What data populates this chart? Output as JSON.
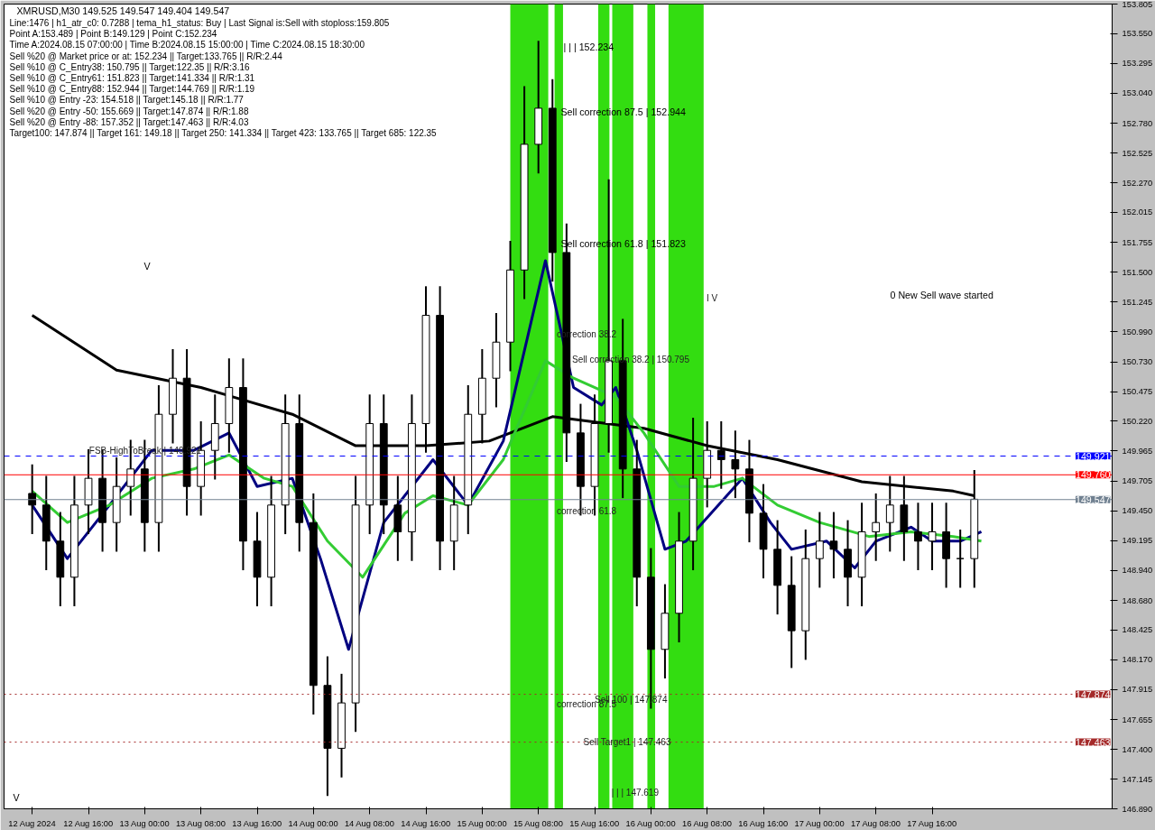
{
  "chart_data": {
    "type": "candlestick",
    "title": "XMRUSD,M30  149.525 149.547 149.404 149.547",
    "x": [
      "2024-08-12T08:00",
      "2024-08-12T10:00",
      "2024-08-12T12:00",
      "2024-08-12T14:00",
      "2024-08-12T16:00",
      "2024-08-12T18:00",
      "2024-08-12T20:00",
      "2024-08-12T22:00",
      "2024-08-13T00:00",
      "2024-08-13T02:00",
      "2024-08-13T04:00",
      "2024-08-13T06:00",
      "2024-08-13T08:00",
      "2024-08-13T10:00",
      "2024-08-13T12:00",
      "2024-08-13T14:00",
      "2024-08-13T16:00",
      "2024-08-13T18:00",
      "2024-08-13T20:00",
      "2024-08-13T22:00",
      "2024-08-14T00:00",
      "2024-08-14T02:00",
      "2024-08-14T04:00",
      "2024-08-14T06:00",
      "2024-08-14T08:00",
      "2024-08-14T10:00",
      "2024-08-14T12:00",
      "2024-08-14T14:00",
      "2024-08-14T16:00",
      "2024-08-14T18:00",
      "2024-08-14T20:00",
      "2024-08-14T22:00",
      "2024-08-15T00:00",
      "2024-08-15T02:00",
      "2024-08-15T04:00",
      "2024-08-15T06:00",
      "2024-08-15T08:00",
      "2024-08-15T10:00",
      "2024-08-15T12:00",
      "2024-08-15T14:00",
      "2024-08-15T16:00",
      "2024-08-15T18:00",
      "2024-08-15T20:00",
      "2024-08-15T22:00",
      "2024-08-16T00:00",
      "2024-08-16T02:00",
      "2024-08-16T04:00",
      "2024-08-16T06:00",
      "2024-08-16T08:00",
      "2024-08-16T10:00",
      "2024-08-16T12:00",
      "2024-08-16T14:00",
      "2024-08-16T16:00",
      "2024-08-16T18:00",
      "2024-08-16T20:00",
      "2024-08-16T22:00",
      "2024-08-17T00:00",
      "2024-08-17T02:00",
      "2024-08-17T04:00",
      "2024-08-17T06:00",
      "2024-08-17T08:00",
      "2024-08-17T10:00",
      "2024-08-17T12:00",
      "2024-08-17T14:00",
      "2024-08-17T16:00",
      "2024-08-17T18:00",
      "2024-08-17T20:00",
      "2024-08-17T22:00"
    ],
    "ohlc": [
      [
        149.6,
        149.85,
        149.25,
        149.5
      ],
      [
        149.5,
        149.75,
        148.94,
        149.19
      ],
      [
        149.19,
        149.44,
        148.63,
        148.88
      ],
      [
        148.88,
        149.75,
        148.63,
        149.5
      ],
      [
        149.5,
        149.98,
        149.25,
        149.73
      ],
      [
        149.73,
        149.98,
        149.1,
        149.35
      ],
      [
        149.35,
        149.91,
        149.1,
        149.66
      ],
      [
        149.66,
        150.06,
        149.41,
        149.81
      ],
      [
        149.81,
        150.06,
        149.1,
        149.35
      ],
      [
        149.35,
        150.53,
        149.1,
        150.28
      ],
      [
        150.28,
        150.84,
        150.03,
        150.59
      ],
      [
        150.59,
        150.84,
        149.41,
        149.66
      ],
      [
        149.66,
        150.22,
        149.41,
        149.97
      ],
      [
        149.97,
        150.45,
        149.72,
        150.2
      ],
      [
        150.2,
        150.76,
        149.95,
        150.51
      ],
      [
        150.51,
        150.76,
        148.94,
        149.19
      ],
      [
        149.19,
        149.44,
        148.63,
        148.88
      ],
      [
        148.88,
        149.75,
        148.63,
        149.5
      ],
      [
        149.5,
        150.45,
        149.25,
        150.2
      ],
      [
        150.2,
        150.45,
        149.1,
        149.35
      ],
      [
        149.35,
        149.6,
        147.7,
        147.95
      ],
      [
        147.95,
        148.2,
        147.0,
        147.41
      ],
      [
        147.41,
        148.05,
        147.16,
        147.8
      ],
      [
        147.8,
        149.75,
        147.55,
        149.5
      ],
      [
        149.5,
        150.45,
        149.25,
        150.2
      ],
      [
        150.2,
        150.45,
        149.25,
        149.5
      ],
      [
        149.5,
        149.75,
        149.02,
        149.27
      ],
      [
        149.27,
        150.45,
        149.02,
        150.2
      ],
      [
        150.2,
        151.38,
        149.95,
        151.13
      ],
      [
        151.13,
        151.38,
        148.94,
        149.19
      ],
      [
        149.19,
        149.75,
        148.94,
        149.5
      ],
      [
        149.5,
        150.53,
        149.25,
        150.28
      ],
      [
        150.28,
        150.84,
        150.03,
        150.59
      ],
      [
        150.59,
        151.15,
        150.34,
        150.9
      ],
      [
        150.9,
        151.77,
        150.65,
        151.52
      ],
      [
        151.52,
        153.1,
        151.27,
        152.6
      ],
      [
        152.6,
        153.49,
        152.35,
        152.91
      ],
      [
        152.91,
        153.16,
        151.42,
        151.67
      ],
      [
        151.67,
        151.92,
        149.87,
        150.12
      ],
      [
        150.12,
        150.37,
        149.41,
        149.66
      ],
      [
        149.66,
        150.45,
        149.41,
        150.2
      ],
      [
        150.2,
        152.3,
        149.95,
        150.74
      ],
      [
        150.74,
        151.1,
        149.56,
        149.81
      ],
      [
        149.81,
        150.06,
        148.63,
        148.88
      ],
      [
        148.88,
        149.13,
        147.75,
        148.26
      ],
      [
        148.26,
        148.82,
        148.01,
        148.57
      ],
      [
        148.57,
        149.44,
        148.32,
        149.19
      ],
      [
        149.19,
        150.25,
        148.94,
        149.73
      ],
      [
        149.73,
        150.22,
        149.48,
        149.97
      ],
      [
        149.97,
        150.22,
        149.64,
        149.89
      ],
      [
        149.89,
        150.14,
        149.56,
        149.81
      ],
      [
        149.81,
        150.06,
        149.18,
        149.43
      ],
      [
        149.43,
        149.68,
        148.87,
        149.12
      ],
      [
        149.12,
        149.37,
        148.56,
        148.81
      ],
      [
        148.81,
        149.06,
        148.1,
        148.42
      ],
      [
        148.42,
        149.29,
        148.17,
        149.04
      ],
      [
        149.04,
        149.44,
        148.79,
        149.19
      ],
      [
        149.19,
        149.44,
        148.87,
        149.12
      ],
      [
        149.12,
        149.37,
        148.63,
        148.88
      ],
      [
        148.88,
        149.52,
        148.63,
        149.27
      ],
      [
        149.27,
        149.6,
        149.02,
        149.35
      ],
      [
        149.35,
        149.75,
        149.1,
        149.5
      ],
      [
        149.5,
        149.75,
        149.02,
        149.27
      ],
      [
        149.27,
        149.52,
        148.94,
        149.19
      ],
      [
        149.19,
        149.52,
        148.94,
        149.27
      ],
      [
        149.27,
        149.52,
        148.79,
        149.04
      ],
      [
        149.04,
        149.29,
        148.79,
        149.04
      ],
      [
        149.04,
        149.8,
        148.79,
        149.55
      ]
    ],
    "color": "#000000",
    "series": [
      {
        "type": "line",
        "color": "#000000",
        "x": [
          "2024-08-12T08:00",
          "2024-08-12T20:00",
          "2024-08-13T08:00",
          "2024-08-13T21:00",
          "2024-08-14T06:00",
          "2024-08-14T16:00",
          "2024-08-15T01:00",
          "2024-08-15T10:00",
          "2024-08-15T23:00",
          "2024-08-16T08:00",
          "2024-08-16T18:00",
          "2024-08-17T06:00",
          "2024-08-17T19:00",
          "2024-08-17T22:00"
        ],
        "values": [
          151.13,
          150.66,
          150.51,
          150.28,
          150.01,
          150.01,
          150.05,
          150.26,
          150.16,
          150.01,
          149.89,
          149.7,
          149.62,
          149.58
        ]
      },
      {
        "type": "line",
        "color": "#000080",
        "x": [
          "2024-08-12T08:00",
          "2024-08-12T13:00",
          "2024-08-12T19:00",
          "2024-08-13T01:00",
          "2024-08-13T07:00",
          "2024-08-13T12:00",
          "2024-08-13T16:00",
          "2024-08-13T21:00",
          "2024-08-14T01:00",
          "2024-08-14T05:00",
          "2024-08-14T10:00",
          "2024-08-14T17:00",
          "2024-08-14T22:00",
          "2024-08-15T03:00",
          "2024-08-15T09:00",
          "2024-08-15T13:00",
          "2024-08-15T17:00",
          "2024-08-15T19:00",
          "2024-08-15T22:00",
          "2024-08-16T02:00",
          "2024-08-16T05:00",
          "2024-08-16T13:00",
          "2024-08-16T17:00",
          "2024-08-16T20:00",
          "2024-08-17T01:00",
          "2024-08-17T05:00",
          "2024-08-17T08:00",
          "2024-08-17T13:00",
          "2024-08-17T16:00",
          "2024-08-17T20:00",
          "2024-08-17T23:00"
        ],
        "values": [
          149.5,
          149.04,
          149.5,
          149.97,
          149.97,
          150.12,
          149.66,
          149.73,
          149.04,
          148.26,
          149.35,
          149.89,
          149.5,
          150.05,
          151.6,
          150.51,
          150.36,
          150.51,
          149.97,
          149.12,
          149.19,
          149.73,
          149.35,
          149.12,
          149.19,
          148.96,
          149.19,
          149.31,
          149.19,
          149.19,
          149.27
        ]
      },
      {
        "type": "line",
        "color": "#33cc33",
        "x": [
          "2024-08-12T08:00",
          "2024-08-12T13:00",
          "2024-08-12T19:00",
          "2024-08-13T01:00",
          "2024-08-13T07:00",
          "2024-08-13T12:00",
          "2024-08-13T17:00",
          "2024-08-13T21:00",
          "2024-08-14T02:00",
          "2024-08-14T07:00",
          "2024-08-14T13:00",
          "2024-08-14T17:00",
          "2024-08-14T22:00",
          "2024-08-15T03:00",
          "2024-08-15T09:00",
          "2024-08-15T13:00",
          "2024-08-15T19:00",
          "2024-08-15T23:00",
          "2024-08-16T04:00",
          "2024-08-16T09:00",
          "2024-08-16T13:00",
          "2024-08-16T18:00",
          "2024-08-17T00:00",
          "2024-08-17T07:00",
          "2024-08-17T13:00",
          "2024-08-17T19:00",
          "2024-08-17T23:00"
        ],
        "values": [
          149.62,
          149.35,
          149.5,
          149.73,
          149.81,
          149.93,
          149.73,
          149.66,
          149.19,
          148.88,
          149.43,
          149.58,
          149.5,
          149.89,
          150.74,
          150.59,
          150.43,
          150.12,
          149.66,
          149.66,
          149.73,
          149.5,
          149.35,
          149.23,
          149.27,
          149.23,
          149.19
        ]
      }
    ],
    "bands": [
      {
        "axis": "x",
        "from": "2024-08-15T04:00",
        "to": "2024-08-15T09:24",
        "color": "#33dd11"
      },
      {
        "axis": "x",
        "from": "2024-08-15T10:18",
        "to": "2024-08-15T11:30",
        "color": "#33dd11"
      },
      {
        "axis": "x",
        "from": "2024-08-15T16:30",
        "to": "2024-08-15T18:06",
        "color": "#33dd11"
      },
      {
        "axis": "x",
        "from": "2024-08-15T18:30",
        "to": "2024-08-15T21:30",
        "color": "#33dd11"
      },
      {
        "axis": "x",
        "from": "2024-08-15T23:30",
        "to": "2024-08-16T00:36",
        "color": "#33dd11"
      },
      {
        "axis": "x",
        "from": "2024-08-16T02:30",
        "to": "2024-08-16T07:30",
        "color": "#33dd11"
      }
    ],
    "ref_lines": [
      {
        "axis": "y",
        "value": 149.921,
        "label": "149.921",
        "color": "#0000ff",
        "line_style": "dashed"
      },
      {
        "axis": "y",
        "value": 149.76,
        "label": "149.760",
        "color": "#ff0000",
        "line_style": "solid"
      },
      {
        "axis": "y",
        "value": 149.547,
        "label": "149.547",
        "color": "#708090",
        "line_style": "solid"
      },
      {
        "axis": "y",
        "value": 147.874,
        "label": "147.874",
        "color": "#a52a2a",
        "line_style": "dotted"
      },
      {
        "axis": "y",
        "value": 147.463,
        "label": "147.463",
        "color": "#a52a2a",
        "line_style": "dotted"
      }
    ],
    "annotations": [
      "Line:1476 | h1_atr_c0: 0.7288 | tema_h1_status: Buy | Last Signal is:Sell with stoploss:159.805",
      "Point A:153.489 | Point B:149.129 | Point C:152.234",
      "Time A:2024.08.15 07:00:00 | Time B:2024.08.15 15:00:00 | Time C:2024.08.15 18:30:00",
      "Sell %20 @ Market price or at: 152.234 || Target:133.765 || R/R:2.44",
      "Sell %10 @ C_Entry38: 150.795 || Target:122.35 || R/R:3.16",
      "Sell %10 @ C_Entry61: 151.823 || Target:141.334 || R/R:1.31",
      "Sell %10 @ C_Entry88: 152.944 || Target:144.769 || R/R:1.19",
      "Sell %10 @ Entry -23: 154.518 || Target:145.18 || R/R:1.77",
      "Sell %20 @ Entry -50: 155.669 || Target:147.874 || R/R:1.88",
      "Sell %20 @ Entry -88: 157.352 || Target:147.463 || R/R:4.03",
      "Target100: 147.874 || Target 161: 149.18 || Target 250: 141.334 || Target 423: 133.765 || Target 685: 122.35",
      "| | | 152.234",
      "Sell correction 87.5 | 152.944",
      "Sell correction 61.8 | 151.823",
      "0 New Sell wave started",
      "V",
      "V",
      {
        "text": "Sell correction 38.2 | 150.795",
        "x": "2024-08-15T12:48",
        "y": 150.75
      },
      {
        "text": "correction 38.2",
        "x": "2024-08-15T10:36",
        "y": 150.97
      },
      {
        "text": "correction 61.8",
        "x": "2024-08-15T10:36",
        "y": 149.45
      },
      {
        "text": "correction 87.5",
        "x": "2024-08-15T10:36",
        "y": 147.79
      },
      {
        "text": "Sell 100 | 147.874",
        "x": "2024-08-15T16:00",
        "y": 147.83
      },
      {
        "text": "Sell Target1 | 147.463",
        "x": "2024-08-15T14:24",
        "y": 147.463
      },
      {
        "text": "| | | 147.619",
        "x": "2024-08-15T18:24",
        "y": 147.03
      },
      {
        "text": "I V",
        "x": "2024-08-16T07:54",
        "y": 151.28
      },
      {
        "text": "FSB-HighToBreak | 149.921",
        "x": "2024-08-12T16:06",
        "y": 149.97
      }
    ],
    "xlim": [
      "2024-08-12T04:00",
      "2024-08-18T17:36"
    ],
    "xticks": [
      {
        "value": "2024-08-12T08:00",
        "label": "12 Aug 2024"
      },
      {
        "value": "2024-08-12T16:00",
        "label": "12 Aug 16:00"
      },
      {
        "value": "2024-08-13T00:00",
        "label": "13 Aug 00:00"
      },
      {
        "value": "2024-08-13T08:00",
        "label": "13 Aug 08:00"
      },
      {
        "value": "2024-08-13T16:00",
        "label": "13 Aug 16:00"
      },
      {
        "value": "2024-08-14T00:00",
        "label": "14 Aug 00:00"
      },
      {
        "value": "2024-08-14T08:00",
        "label": "14 Aug 08:00"
      },
      {
        "value": "2024-08-14T16:00",
        "label": "14 Aug 16:00"
      },
      {
        "value": "2024-08-15T00:00",
        "label": "15 Aug 00:00"
      },
      {
        "value": "2024-08-15T08:00",
        "label": "15 Aug 08:00"
      },
      {
        "value": "2024-08-15T16:00",
        "label": "15 Aug 16:00"
      },
      {
        "value": "2024-08-16T00:00",
        "label": "16 Aug 00:00"
      },
      {
        "value": "2024-08-16T08:00",
        "label": "16 Aug 08:00"
      },
      {
        "value": "2024-08-16T16:00",
        "label": "16 Aug 16:00"
      },
      {
        "value": "2024-08-17T00:00",
        "label": "17 Aug 00:00"
      },
      {
        "value": "2024-08-17T08:00",
        "label": "17 Aug 08:00"
      },
      {
        "value": "2024-08-17T16:00",
        "label": "17 Aug 16:00"
      }
    ],
    "ylim": [
      146.89,
      153.805
    ],
    "yticks": [
      {
        "value": 153.805,
        "label": "153.805"
      },
      {
        "value": 153.55,
        "label": "153.550"
      },
      {
        "value": 153.295,
        "label": "153.295"
      },
      {
        "value": 153.04,
        "label": "153.040"
      },
      {
        "value": 152.78,
        "label": "152.780"
      },
      {
        "value": 152.525,
        "label": "152.525"
      },
      {
        "value": 152.27,
        "label": "152.270"
      },
      {
        "value": 152.015,
        "label": "152.015"
      },
      {
        "value": 151.755,
        "label": "151.755"
      },
      {
        "value": 151.5,
        "label": "151.500"
      },
      {
        "value": 151.245,
        "label": "151.245"
      },
      {
        "value": 150.99,
        "label": "150.990"
      },
      {
        "value": 150.73,
        "label": "150.730"
      },
      {
        "value": 150.475,
        "label": "150.475"
      },
      {
        "value": 150.22,
        "label": "150.220"
      },
      {
        "value": 149.965,
        "label": "149.965"
      },
      {
        "value": 149.705,
        "label": "149.705"
      },
      {
        "value": 149.45,
        "label": "149.450"
      },
      {
        "value": 149.195,
        "label": "149.195"
      },
      {
        "value": 148.94,
        "label": "148.940"
      },
      {
        "value": 148.68,
        "label": "148.680"
      },
      {
        "value": 148.425,
        "label": "148.425"
      },
      {
        "value": 148.17,
        "label": "148.170"
      },
      {
        "value": 147.915,
        "label": "147.915"
      },
      {
        "value": 147.655,
        "label": "147.655"
      },
      {
        "value": 147.4,
        "label": "147.400"
      },
      {
        "value": 147.145,
        "label": "147.145"
      },
      {
        "value": 146.89,
        "label": "146.890"
      }
    ]
  }
}
